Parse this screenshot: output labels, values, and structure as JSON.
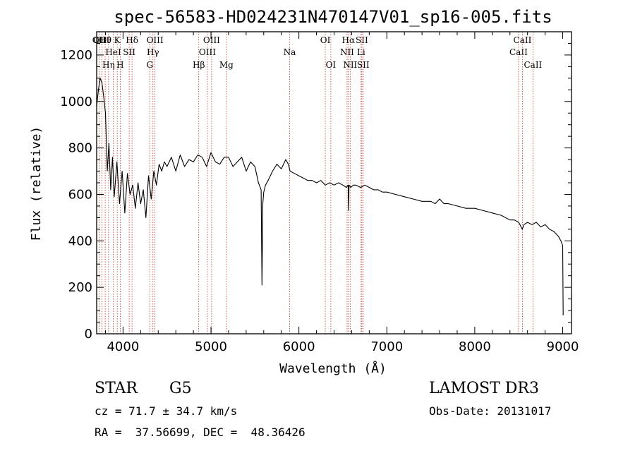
{
  "chart_data": {
    "type": "line",
    "title": "spec-56583-HD024231N470147V01_sp16-005.fits",
    "xlabel": "Wavelength (Å)",
    "ylabel": "Flux (relative)",
    "xlim": [
      3700,
      9100
    ],
    "ylim": [
      0,
      1300
    ],
    "xticks": [
      4000,
      5000,
      6000,
      7000,
      8000,
      9000
    ],
    "yticks": [
      0,
      200,
      400,
      600,
      800,
      1000,
      1200
    ],
    "grid": false,
    "series": [
      {
        "name": "flux",
        "x": [
          3700,
          3720,
          3740,
          3760,
          3780,
          3800,
          3820,
          3840,
          3860,
          3880,
          3900,
          3930,
          3960,
          3990,
          4020,
          4050,
          4080,
          4110,
          4140,
          4170,
          4200,
          4230,
          4260,
          4290,
          4320,
          4350,
          4380,
          4410,
          4440,
          4470,
          4500,
          4550,
          4600,
          4650,
          4700,
          4750,
          4800,
          4850,
          4900,
          4950,
          5000,
          5050,
          5100,
          5150,
          5200,
          5250,
          5300,
          5350,
          5400,
          5450,
          5500,
          5540,
          5570,
          5580,
          5590,
          5600,
          5620,
          5650,
          5700,
          5750,
          5800,
          5850,
          5880,
          5900,
          5950,
          6000,
          6050,
          6100,
          6150,
          6200,
          6250,
          6300,
          6350,
          6400,
          6450,
          6500,
          6540,
          6560,
          6565,
          6570,
          6590,
          6620,
          6650,
          6700,
          6750,
          6800,
          6850,
          6900,
          6950,
          7000,
          7100,
          7200,
          7300,
          7400,
          7500,
          7550,
          7600,
          7650,
          7700,
          7800,
          7900,
          8000,
          8100,
          8200,
          8300,
          8400,
          8450,
          8500,
          8540,
          8560,
          8600,
          8650,
          8700,
          8750,
          8800,
          8850,
          8900,
          8950,
          8980,
          9000,
          9005
        ],
        "values": [
          980,
          1050,
          1100,
          1080,
          1020,
          950,
          700,
          820,
          620,
          760,
          590,
          740,
          560,
          700,
          520,
          690,
          600,
          640,
          540,
          650,
          560,
          620,
          500,
          680,
          580,
          700,
          640,
          730,
          700,
          740,
          720,
          760,
          700,
          770,
          720,
          750,
          740,
          770,
          760,
          720,
          780,
          740,
          730,
          760,
          760,
          720,
          740,
          760,
          700,
          740,
          720,
          650,
          620,
          210,
          560,
          610,
          640,
          660,
          700,
          730,
          710,
          750,
          730,
          700,
          690,
          680,
          670,
          660,
          660,
          650,
          660,
          640,
          650,
          640,
          650,
          640,
          630,
          640,
          530,
          640,
          630,
          640,
          640,
          630,
          640,
          630,
          620,
          620,
          610,
          610,
          600,
          590,
          580,
          570,
          570,
          560,
          580,
          560,
          560,
          550,
          540,
          540,
          530,
          520,
          510,
          490,
          490,
          480,
          450,
          470,
          480,
          470,
          480,
          460,
          470,
          450,
          440,
          420,
          400,
          380,
          80
        ]
      }
    ],
    "annotations": [
      {
        "wl": 3727,
        "lines": [
          "OII"
        ]
      },
      {
        "wl": 3760,
        "lines": [
          "OIII"
        ]
      },
      {
        "wl": 3797,
        "lines": [
          "Hθ"
        ]
      },
      {
        "wl": 3889,
        "lines": [
          "",
          "HeI"
        ]
      },
      {
        "wl": 3835,
        "lines": [
          "",
          "",
          "Hη"
        ]
      },
      {
        "wl": 3934,
        "lines": [
          "K"
        ]
      },
      {
        "wl": 3968,
        "lines": [
          "",
          "",
          "H"
        ]
      },
      {
        "wl": 4070,
        "lines": [
          "",
          "SII"
        ]
      },
      {
        "wl": 4102,
        "lines": [
          "Hδ"
        ]
      },
      {
        "wl": 4304,
        "lines": [
          "",
          "",
          "G"
        ]
      },
      {
        "wl": 4340,
        "lines": [
          "",
          "Hγ"
        ]
      },
      {
        "wl": 4363,
        "lines": [
          "OIII"
        ]
      },
      {
        "wl": 4861,
        "lines": [
          "",
          "",
          "Hβ"
        ]
      },
      {
        "wl": 4959,
        "lines": [
          "",
          "OIII"
        ]
      },
      {
        "wl": 5007,
        "lines": [
          "OIII"
        ]
      },
      {
        "wl": 5175,
        "lines": [
          "",
          "",
          "Mg"
        ]
      },
      {
        "wl": 5894,
        "lines": [
          "",
          "Na"
        ]
      },
      {
        "wl": 6300,
        "lines": [
          "OI"
        ]
      },
      {
        "wl": 6363,
        "lines": [
          "",
          "",
          "OI"
        ]
      },
      {
        "wl": 6548,
        "lines": [
          "",
          "NII"
        ]
      },
      {
        "wl": 6563,
        "lines": [
          "Hα"
        ]
      },
      {
        "wl": 6583,
        "lines": [
          "",
          "",
          "NII"
        ]
      },
      {
        "wl": 6716,
        "lines": [
          "SII"
        ]
      },
      {
        "wl": 6707,
        "lines": [
          "",
          "Li"
        ]
      },
      {
        "wl": 6731,
        "lines": [
          "",
          "",
          "SII"
        ]
      },
      {
        "wl": 8498,
        "lines": [
          "",
          "CaII"
        ]
      },
      {
        "wl": 8542,
        "lines": [
          "CaII"
        ]
      },
      {
        "wl": 8662,
        "lines": [
          "",
          "",
          "CaII"
        ]
      }
    ]
  },
  "info": {
    "object_class": "STAR",
    "subclass": "G5",
    "survey": "LAMOST DR3",
    "redshift": "cz = 71.7 ± 34.7 km/s",
    "obs_date": "Obs-Date: 20131017",
    "coords": "RA =  37.56699, DEC =  48.36426"
  }
}
